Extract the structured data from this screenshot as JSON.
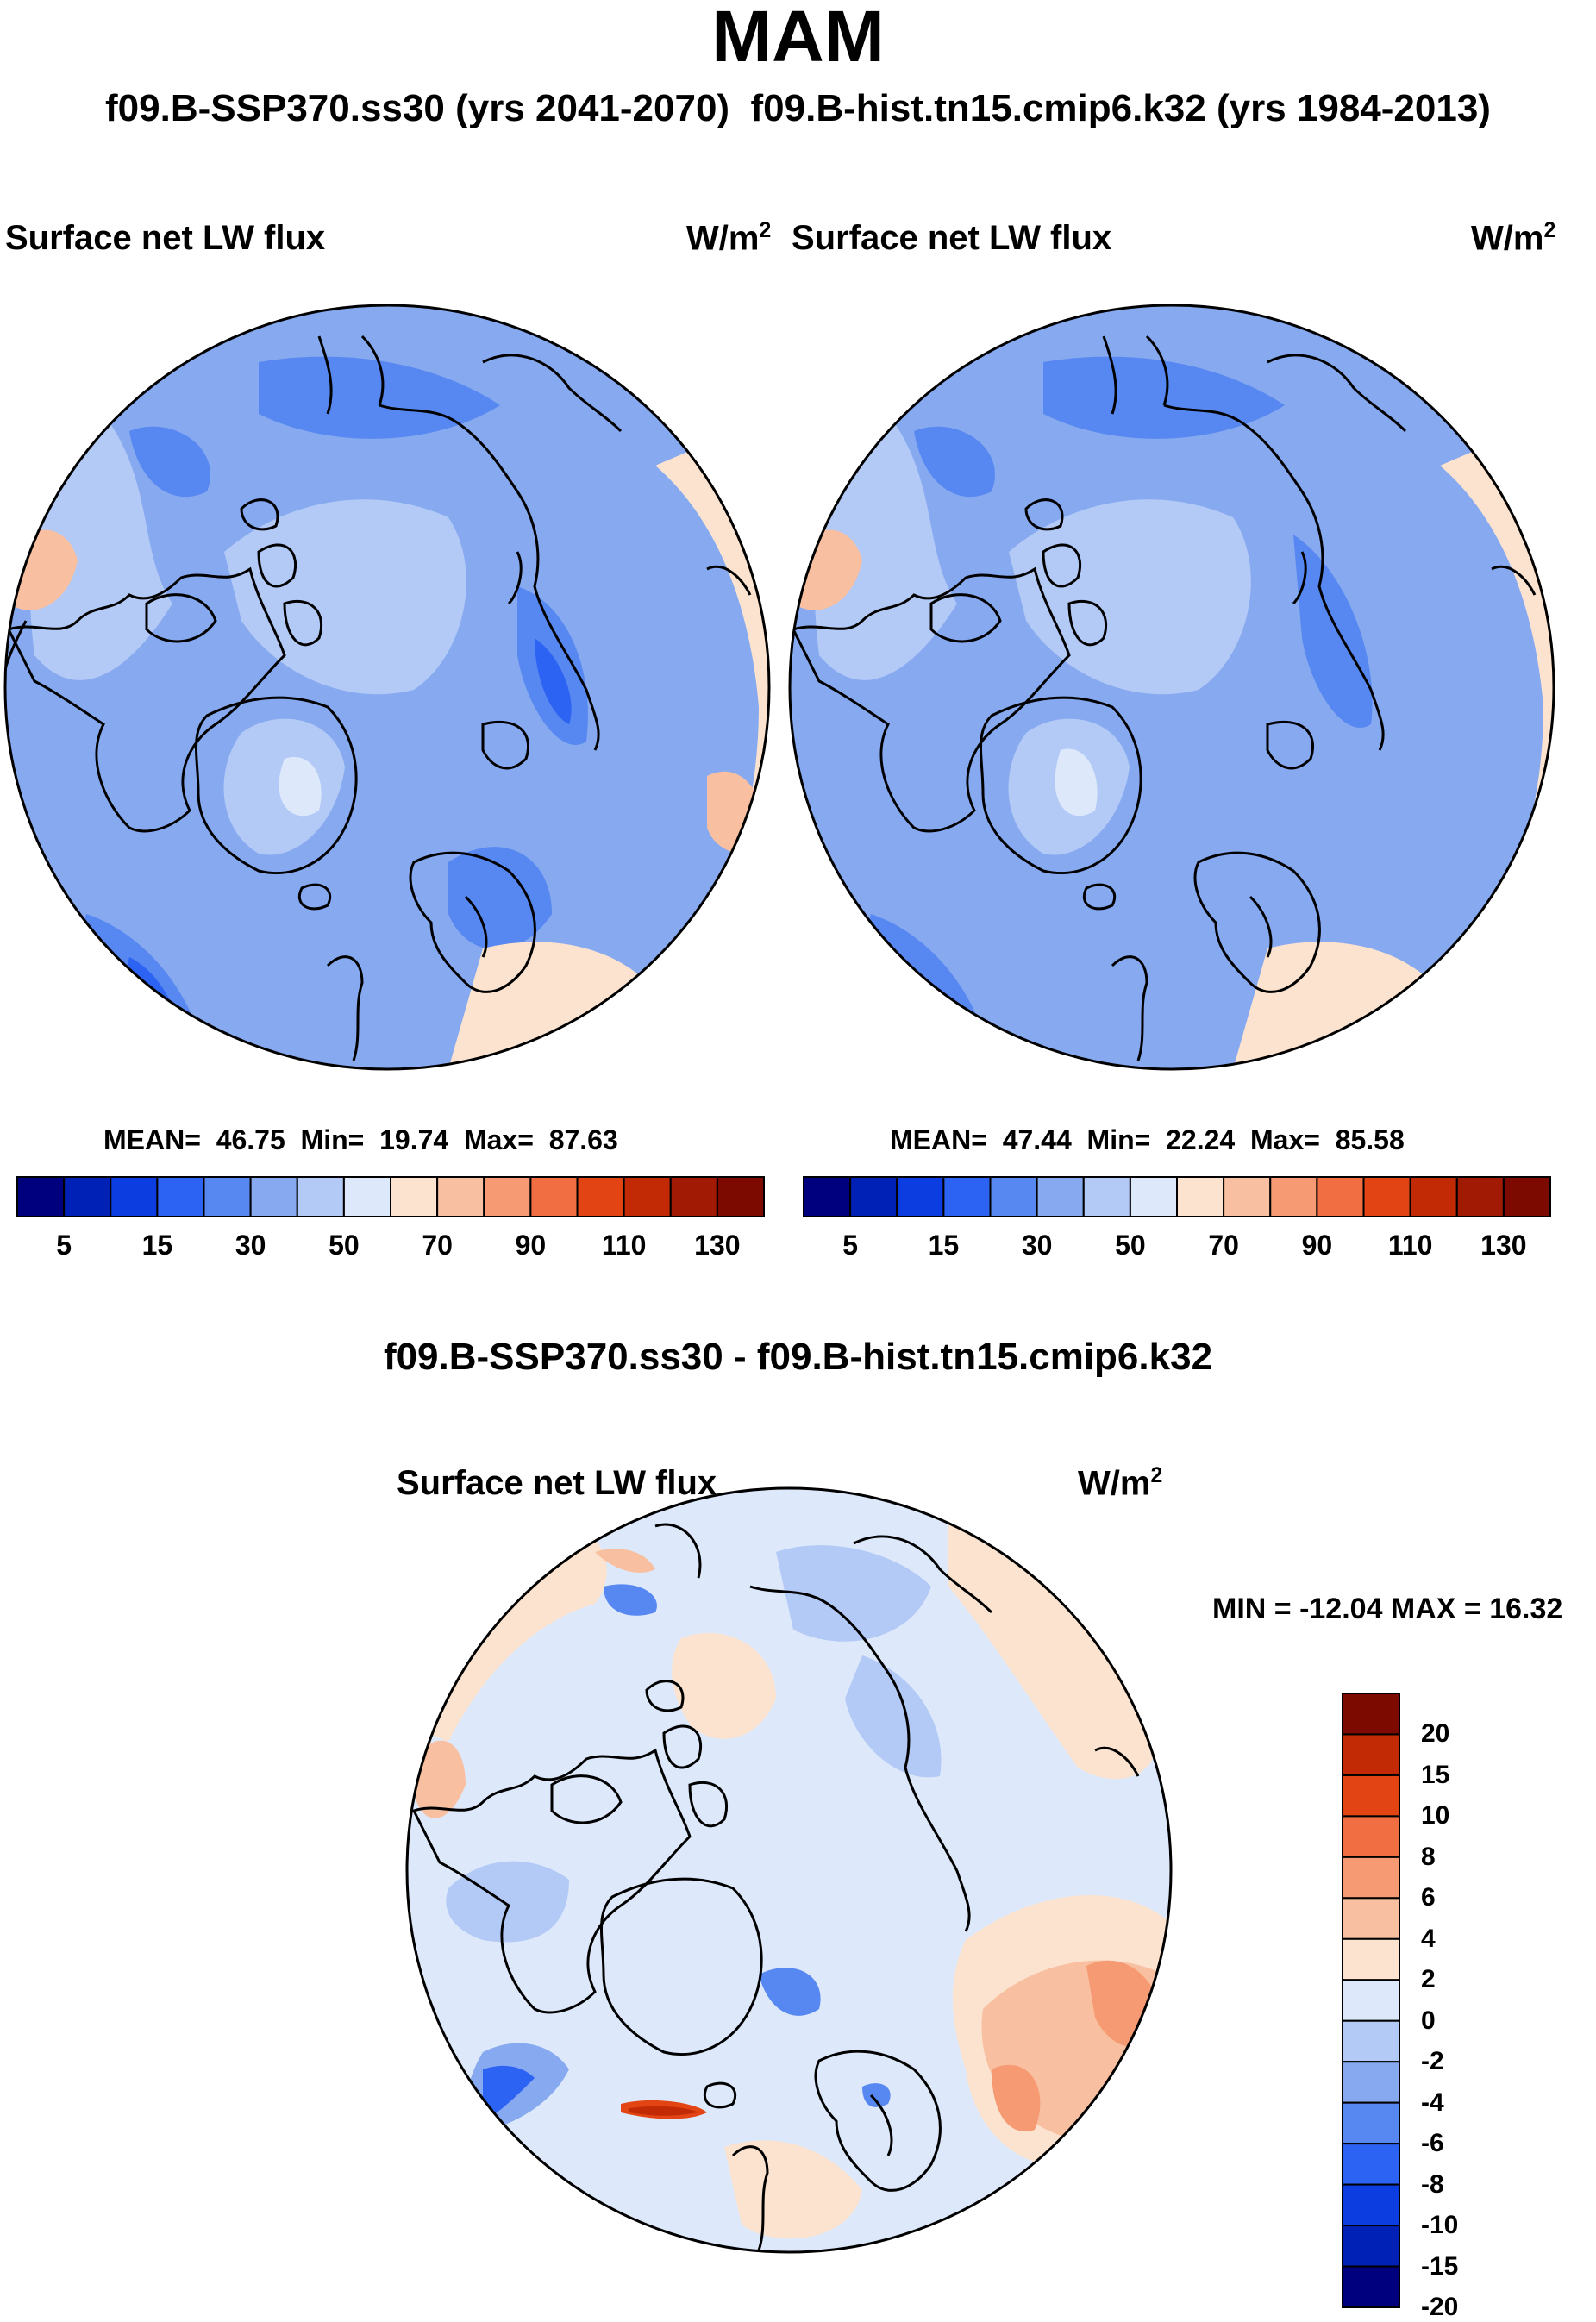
{
  "season": "MAM",
  "subtitle_left": "f09.B-SSP370.ss30 (yrs 2041-2070)",
  "subtitle_right": "f09.B-hist.tn15.cmip6.k32 (yrs 1984-2013)",
  "panels": [
    {
      "variable": "Surface net LW flux",
      "units_base": "W/m",
      "units_exp": "2",
      "stats": {
        "mean_label": "MEAN=",
        "mean": "46.75",
        "min_label": "Min=",
        "min": "19.74",
        "max_label": "Max=",
        "max": "87.63"
      }
    },
    {
      "variable": "Surface net LW flux",
      "units_base": "W/m",
      "units_exp": "2",
      "stats": {
        "mean_label": "MEAN=",
        "mean": "47.44",
        "min_label": "Min=",
        "min": "22.24",
        "max_label": "Max=",
        "max": "85.58"
      }
    }
  ],
  "diff": {
    "title": "f09.B-SSP370.ss30 - f09.B-hist.tn15.cmip6.k32",
    "variable": "Surface net LW flux",
    "units_base": "W/m",
    "units_exp": "2",
    "stats": "MIN = -12.04 MAX =  16.32"
  },
  "colorbar_abs": {
    "ticks": [
      "5",
      "15",
      "30",
      "50",
      "70",
      "90",
      "110",
      "130"
    ],
    "colors": [
      "#00007f",
      "#0021b5",
      "#0b3de0",
      "#2d63f2",
      "#5787f0",
      "#86a9f0",
      "#b3c9f6",
      "#dde9fb",
      "#fbe3cf",
      "#f8c0a0",
      "#f59a72",
      "#f06e41",
      "#e24413",
      "#c22a05",
      "#a01a04",
      "#7c0a00"
    ]
  },
  "colorbar_diff": {
    "ticks": [
      "20",
      "15",
      "10",
      "8",
      "6",
      "4",
      "2",
      "0",
      "-2",
      "-4",
      "-6",
      "-8",
      "-10",
      "-15",
      "-20"
    ],
    "colors": [
      "#7c0a00",
      "#c22a05",
      "#e24413",
      "#f06e41",
      "#f59a72",
      "#f8c0a0",
      "#fbe3cf",
      "#dde9fb",
      "#b3c9f6",
      "#86a9f0",
      "#5787f0",
      "#2d63f2",
      "#0b3de0",
      "#0021b5",
      "#00007f"
    ]
  }
}
